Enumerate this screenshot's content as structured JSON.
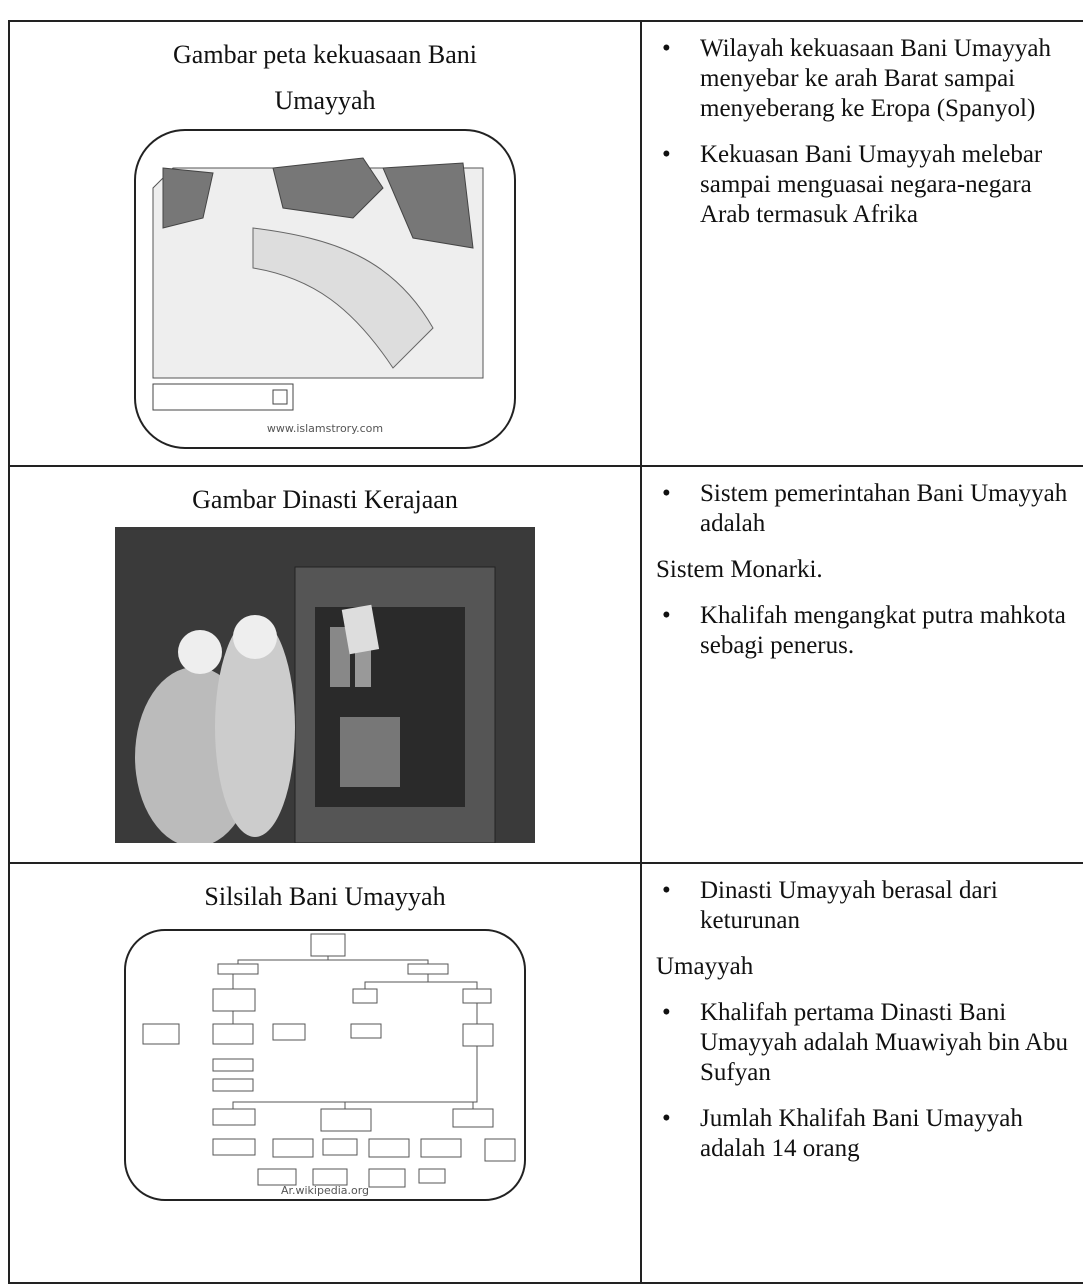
{
  "rows": [
    {
      "title": "Gambar peta kekuasaan Bani Umayyah",
      "caption": "www.islamstrory.com",
      "points": [
        {
          "text": "Wilayah kekuasaan Bani Umayyah menyebar ke arah Barat sampai menyeberang ke Eropa (Spanyol)",
          "bullet": true
        },
        {
          "text": "Kekuasan Bani Umayyah melebar sampai menguasai negara-negara Arab termasuk Afrika",
          "bullet": true
        }
      ]
    },
    {
      "title": "Gambar Dinasti Kerajaan",
      "points": [
        {
          "text": "Sistem pemerintahan Bani Umayyah adalah",
          "bullet": true
        },
        {
          "text": "Sistem Monarki.",
          "bullet": false
        },
        {
          "text": "Khalifah mengangkat putra mahkota sebagi penerus.",
          "bullet": true
        }
      ]
    },
    {
      "title": "Silsilah Bani Umayyah",
      "caption": "Ar.wikipedia.org",
      "points": [
        {
          "text": "Dinasti Umayyah berasal dari keturunan",
          "bullet": true
        },
        {
          "text": "Umayyah",
          "bullet": false
        },
        {
          "text": "Khalifah pertama Dinasti Bani Umayyah adalah Muawiyah bin Abu Sufyan",
          "bullet": true
        },
        {
          "text": "Jumlah Khalifah Bani Umayyah adalah 14 orang",
          "bullet": true
        }
      ]
    }
  ]
}
